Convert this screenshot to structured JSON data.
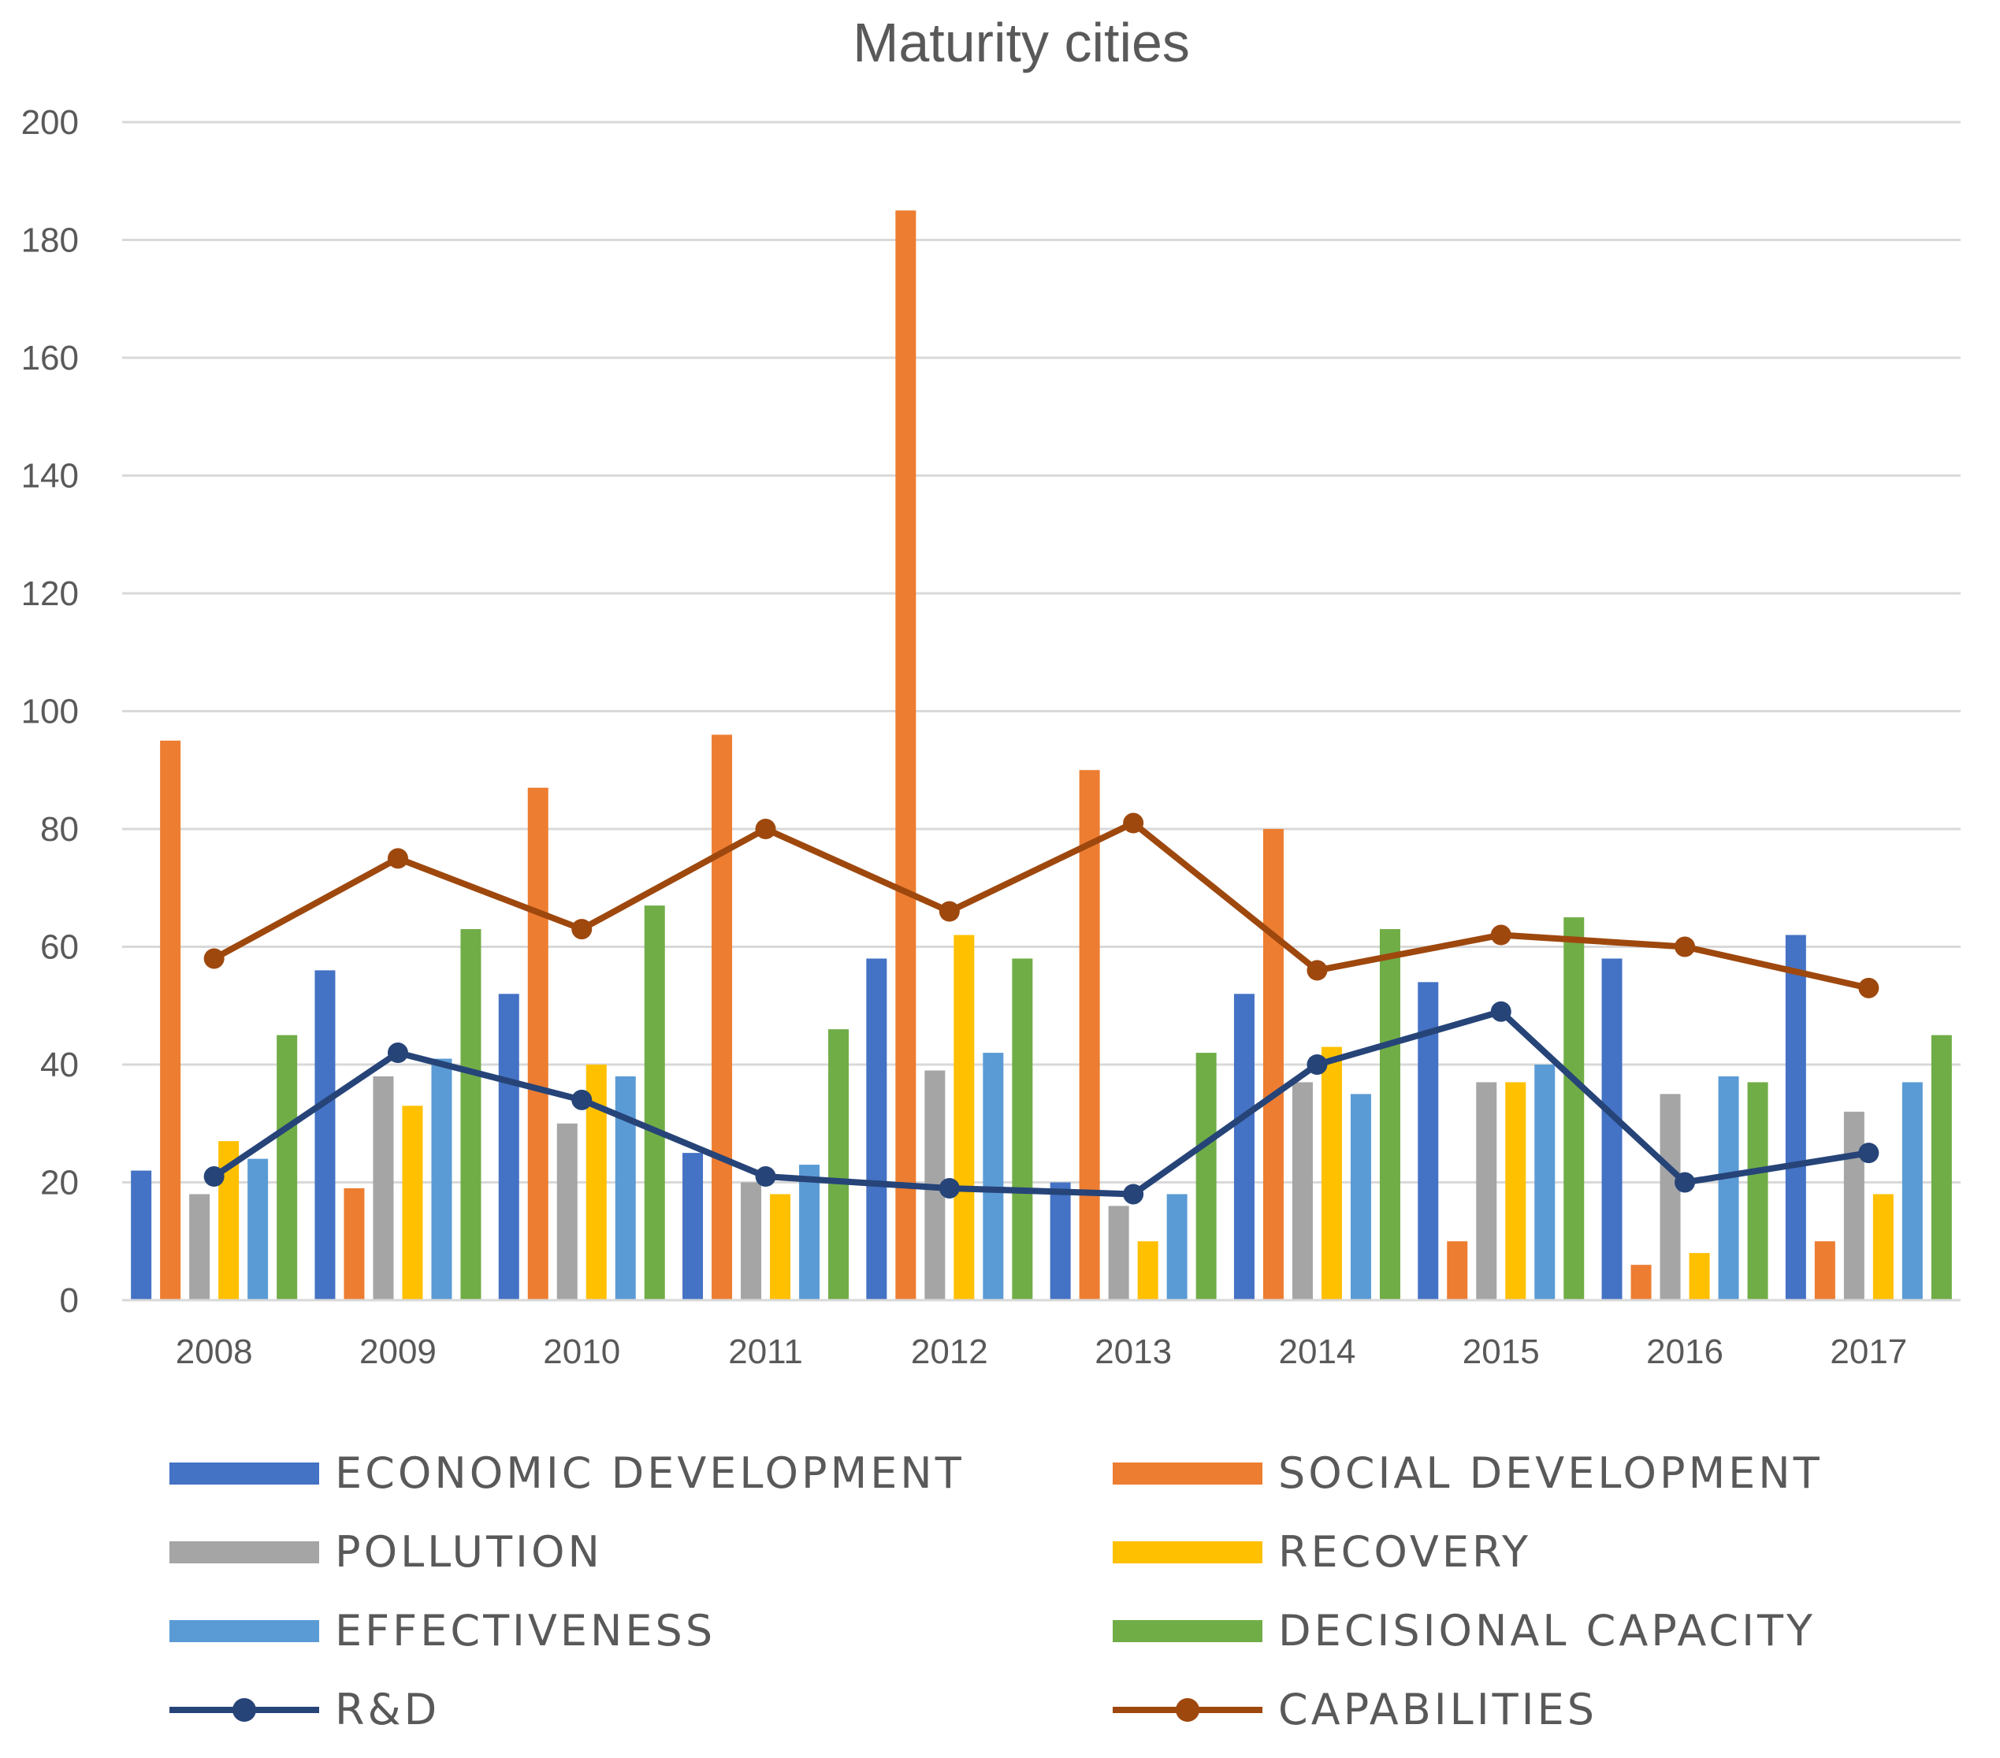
{
  "chart_data": {
    "type": "bar",
    "title": "Maturity cities",
    "xlabel": "",
    "ylabel": "",
    "ylim": [
      0,
      200
    ],
    "yticks": [
      "0",
      "20",
      "40",
      "60",
      "80",
      "100",
      "120",
      "140",
      "160",
      "180",
      "200"
    ],
    "grid": true,
    "legend_position": "bottom",
    "categories": [
      "2008",
      "2009",
      "2010",
      "2011",
      "2012",
      "2013",
      "2014",
      "2015",
      "2016",
      "2017"
    ],
    "series": [
      {
        "name": "ECONOMIC DEVELOPMENT",
        "kind": "bar",
        "color": "#4472c4",
        "values": [
          22,
          56,
          52,
          25,
          58,
          20,
          52,
          54,
          58,
          62
        ]
      },
      {
        "name": "SOCIAL DEVELOPMENT",
        "kind": "bar",
        "color": "#ed7d31",
        "values": [
          95,
          19,
          87,
          96,
          185,
          90,
          80,
          10,
          6,
          10
        ]
      },
      {
        "name": "POLLUTION",
        "kind": "bar",
        "color": "#a5a5a5",
        "values": [
          18,
          38,
          30,
          20,
          39,
          16,
          37,
          37,
          35,
          32
        ]
      },
      {
        "name": "RECOVERY",
        "kind": "bar",
        "color": "#ffc000",
        "values": [
          27,
          33,
          40,
          18,
          62,
          10,
          43,
          37,
          8,
          18
        ]
      },
      {
        "name": "EFFECTIVENESS",
        "kind": "bar",
        "color": "#5b9bd5",
        "values": [
          24,
          41,
          38,
          23,
          42,
          18,
          35,
          40,
          38,
          37
        ]
      },
      {
        "name": "DECISIONAL CAPACITY",
        "kind": "bar",
        "color": "#70ad47",
        "values": [
          45,
          63,
          67,
          46,
          58,
          42,
          63,
          65,
          37,
          45
        ]
      },
      {
        "name": "R&D",
        "kind": "line",
        "color": "#264478",
        "values": [
          21,
          42,
          34,
          21,
          19,
          18,
          40,
          49,
          20,
          25
        ]
      },
      {
        "name": "CAPABILITIES",
        "kind": "line",
        "color": "#9e480e",
        "values": [
          58,
          75,
          63,
          80,
          66,
          81,
          56,
          62,
          60,
          53
        ]
      }
    ]
  }
}
